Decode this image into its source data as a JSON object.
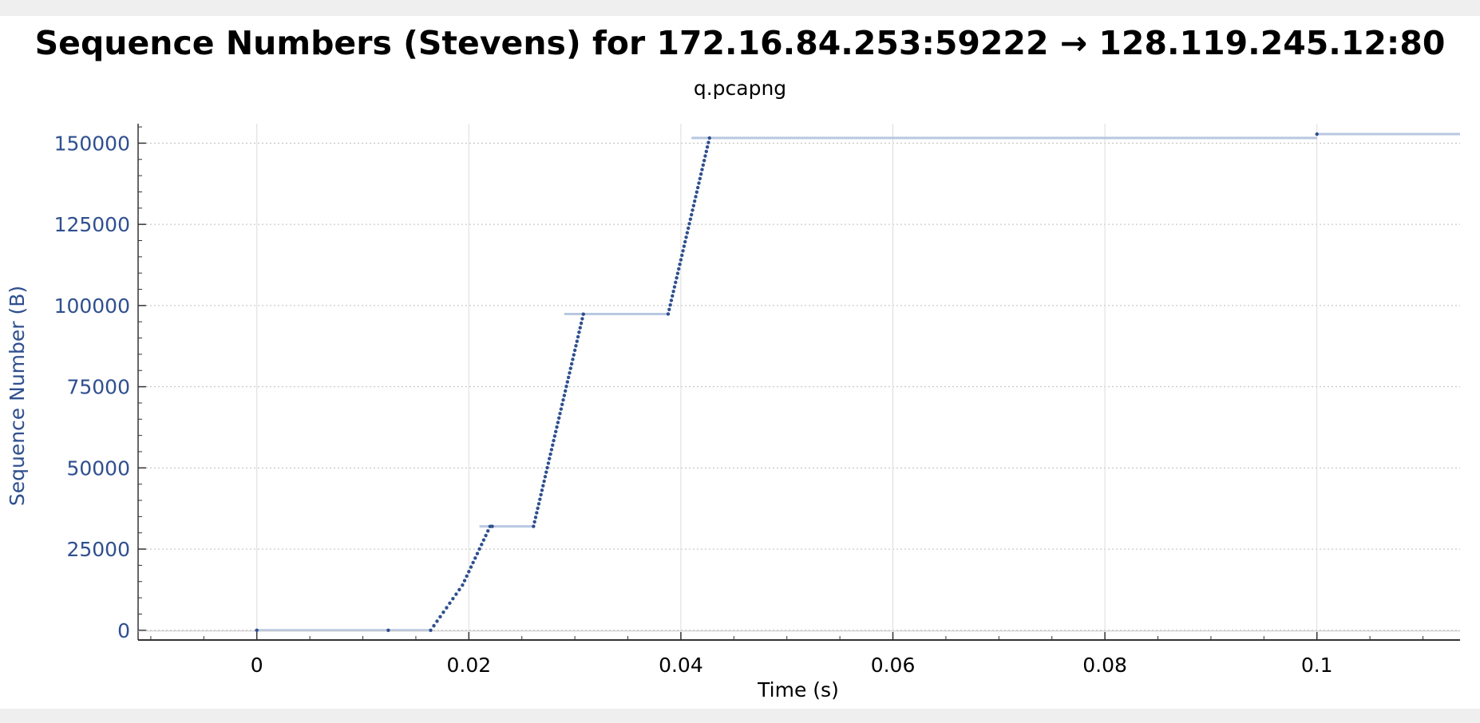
{
  "chart_data": {
    "type": "scatter",
    "title": "Sequence Numbers (Stevens) for 172.16.84.253:59222 → 128.119.245.12:80",
    "subtitle": "q.pcapng",
    "xlabel": "Time (s)",
    "ylabel": "Sequence Number (B)",
    "xlim": [
      -0.0112,
      0.1135
    ],
    "ylim": [
      -3000,
      156000
    ],
    "xticks": [
      0,
      0.02,
      0.04,
      0.06,
      0.08,
      0.1
    ],
    "xtick_labels": [
      "0",
      "0.02",
      "0.04",
      "0.06",
      "0.08",
      "0.1"
    ],
    "yticks": [
      0,
      25000,
      50000,
      75000,
      100000,
      125000,
      150000
    ],
    "ytick_labels": [
      "0",
      "25000",
      "50000",
      "75000",
      "100000",
      "125000",
      "150000"
    ],
    "grid": true,
    "colors": {
      "points": "#2f4f8f",
      "lines": "#b8c8e0",
      "axis_text": "#2f4f8f"
    },
    "series": [
      {
        "points": [
          [
            0,
            0
          ],
          [
            0.0124,
            1
          ],
          [
            0.0164,
            0
          ],
          [
            0.0167,
            1390
          ],
          [
            0.017,
            2780
          ],
          [
            0.0173,
            4170
          ],
          [
            0.0176,
            5560
          ],
          [
            0.0179,
            6950
          ],
          [
            0.0182,
            8340
          ],
          [
            0.0185,
            9730
          ],
          [
            0.0188,
            11120
          ],
          [
            0.0191,
            12510
          ],
          [
            0.0194,
            13900
          ],
          [
            0.0196,
            15290
          ],
          [
            0.0198,
            16680
          ],
          [
            0.02,
            18070
          ],
          [
            0.0202,
            19460
          ],
          [
            0.0204,
            20850
          ],
          [
            0.0206,
            22240
          ],
          [
            0.0208,
            23630
          ],
          [
            0.021,
            25020
          ],
          [
            0.0212,
            26410
          ],
          [
            0.0214,
            27800
          ],
          [
            0.0216,
            29190
          ],
          [
            0.0218,
            30580
          ],
          [
            0.022,
            31970
          ],
          [
            0.0222,
            32000
          ],
          [
            0.0261,
            32000
          ],
          [
            0.0262,
            33390
          ],
          [
            0.0263,
            34780
          ],
          [
            0.0264,
            36170
          ],
          [
            0.0265,
            37560
          ],
          [
            0.0266,
            38950
          ],
          [
            0.0267,
            40340
          ],
          [
            0.0268,
            41730
          ],
          [
            0.0269,
            43120
          ],
          [
            0.027,
            44510
          ],
          [
            0.0271,
            45900
          ],
          [
            0.0272,
            47290
          ],
          [
            0.0273,
            48680
          ],
          [
            0.0274,
            50070
          ],
          [
            0.0275,
            51460
          ],
          [
            0.0276,
            52850
          ],
          [
            0.0277,
            54240
          ],
          [
            0.0278,
            55630
          ],
          [
            0.0279,
            57020
          ],
          [
            0.028,
            58410
          ],
          [
            0.0281,
            59800
          ],
          [
            0.0282,
            61190
          ],
          [
            0.0283,
            62580
          ],
          [
            0.0284,
            63970
          ],
          [
            0.0285,
            65360
          ],
          [
            0.0286,
            66750
          ],
          [
            0.0287,
            68140
          ],
          [
            0.0288,
            69530
          ],
          [
            0.0289,
            70920
          ],
          [
            0.029,
            72310
          ],
          [
            0.0291,
            73700
          ],
          [
            0.0292,
            75090
          ],
          [
            0.0293,
            76480
          ],
          [
            0.0294,
            77870
          ],
          [
            0.0295,
            79260
          ],
          [
            0.0296,
            80650
          ],
          [
            0.0297,
            82040
          ],
          [
            0.0298,
            83430
          ],
          [
            0.0299,
            84820
          ],
          [
            0.03,
            86210
          ],
          [
            0.0301,
            87600
          ],
          [
            0.0302,
            88990
          ],
          [
            0.0303,
            90380
          ],
          [
            0.0304,
            91770
          ],
          [
            0.0305,
            93160
          ],
          [
            0.0306,
            94550
          ],
          [
            0.0307,
            95940
          ],
          [
            0.0308,
            97330
          ],
          [
            0.0388,
            97400
          ],
          [
            0.0389,
            98790
          ],
          [
            0.039,
            100180
          ],
          [
            0.0391,
            101570
          ],
          [
            0.0392,
            102960
          ],
          [
            0.0393,
            104350
          ],
          [
            0.0394,
            105740
          ],
          [
            0.0395,
            107130
          ],
          [
            0.0396,
            108520
          ],
          [
            0.0397,
            109910
          ],
          [
            0.0398,
            111300
          ],
          [
            0.0399,
            112690
          ],
          [
            0.04,
            114080
          ],
          [
            0.0401,
            115470
          ],
          [
            0.0402,
            116860
          ],
          [
            0.0403,
            118250
          ],
          [
            0.0404,
            119640
          ],
          [
            0.0405,
            121030
          ],
          [
            0.0406,
            122420
          ],
          [
            0.0407,
            123810
          ],
          [
            0.0408,
            125200
          ],
          [
            0.0409,
            126590
          ],
          [
            0.041,
            127980
          ],
          [
            0.0411,
            129370
          ],
          [
            0.0412,
            130760
          ],
          [
            0.0413,
            132150
          ],
          [
            0.0414,
            133540
          ],
          [
            0.0415,
            134930
          ],
          [
            0.0416,
            136320
          ],
          [
            0.0417,
            137710
          ],
          [
            0.0418,
            139100
          ],
          [
            0.0419,
            140490
          ],
          [
            0.042,
            141880
          ],
          [
            0.0421,
            143270
          ],
          [
            0.0422,
            144660
          ],
          [
            0.0423,
            146050
          ],
          [
            0.0424,
            147440
          ],
          [
            0.0425,
            148830
          ],
          [
            0.0426,
            150220
          ],
          [
            0.0427,
            151600
          ],
          [
            0.1,
            152800
          ]
        ],
        "horizontal_lines": [
          [
            0,
            0.0164,
            0
          ],
          [
            0.021,
            0.0261,
            32000
          ],
          [
            0.029,
            0.0388,
            97400
          ],
          [
            0.041,
            0.1,
            151600
          ],
          [
            0.1,
            0.1135,
            152800
          ]
        ]
      }
    ]
  }
}
